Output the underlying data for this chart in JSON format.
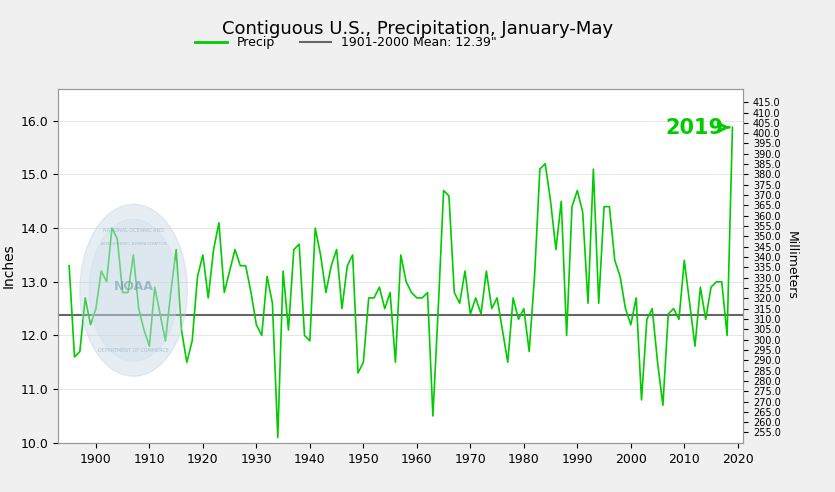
{
  "title": "Contiguous U.S., Precipitation, January-May",
  "ylabel_left": "Inches",
  "ylabel_right": "Millimeters",
  "mean_value": 12.39,
  "mean_label": "1901-2000 Mean: 12.39\"",
  "annotation_2019": "2019",
  "annotation_color": "#00cc00",
  "line_color": "#00cc00",
  "mean_line_color": "#666666",
  "bg_color": "#f0f0f0",
  "plot_bg_color": "#ffffff",
  "xlim": [
    1893,
    2021
  ],
  "ylim_inches": [
    10.0,
    16.6
  ],
  "ylim_mm_lo": 250.0,
  "ylim_mm_hi": 421.6,
  "xticks": [
    1900,
    1910,
    1920,
    1930,
    1940,
    1950,
    1960,
    1970,
    1980,
    1990,
    2000,
    2010,
    2020
  ],
  "yticks_left": [
    10.0,
    11.0,
    12.0,
    13.0,
    14.0,
    15.0,
    16.0
  ],
  "yticks_right": [
    255.0,
    260.0,
    265.0,
    270.0,
    275.0,
    280.0,
    285.0,
    290.0,
    295.0,
    300.0,
    305.0,
    310.0,
    315.0,
    320.0,
    325.0,
    330.0,
    335.0,
    340.0,
    345.0,
    350.0,
    355.0,
    360.0,
    365.0,
    370.0,
    375.0,
    380.0,
    385.0,
    390.0,
    395.0,
    400.0,
    405.0,
    410.0,
    415.0
  ],
  "years": [
    1895,
    1896,
    1897,
    1898,
    1899,
    1900,
    1901,
    1902,
    1903,
    1904,
    1905,
    1906,
    1907,
    1908,
    1909,
    1910,
    1911,
    1912,
    1913,
    1914,
    1915,
    1916,
    1917,
    1918,
    1919,
    1920,
    1921,
    1922,
    1923,
    1924,
    1925,
    1926,
    1927,
    1928,
    1929,
    1930,
    1931,
    1932,
    1933,
    1934,
    1935,
    1936,
    1937,
    1938,
    1939,
    1940,
    1941,
    1942,
    1943,
    1944,
    1945,
    1946,
    1947,
    1948,
    1949,
    1950,
    1951,
    1952,
    1953,
    1954,
    1955,
    1956,
    1957,
    1958,
    1959,
    1960,
    1961,
    1962,
    1963,
    1964,
    1965,
    1966,
    1967,
    1968,
    1969,
    1970,
    1971,
    1972,
    1973,
    1974,
    1975,
    1976,
    1977,
    1978,
    1979,
    1980,
    1981,
    1982,
    1983,
    1984,
    1985,
    1986,
    1987,
    1988,
    1989,
    1990,
    1991,
    1992,
    1993,
    1994,
    1995,
    1996,
    1997,
    1998,
    1999,
    2000,
    2001,
    2002,
    2003,
    2004,
    2005,
    2006,
    2007,
    2008,
    2009,
    2010,
    2011,
    2012,
    2013,
    2014,
    2015,
    2016,
    2017,
    2018,
    2019
  ],
  "precip": [
    13.3,
    11.6,
    11.7,
    12.7,
    12.2,
    12.5,
    13.2,
    13.0,
    14.0,
    13.8,
    12.8,
    12.8,
    13.5,
    12.5,
    12.1,
    11.8,
    12.9,
    12.4,
    11.9,
    12.8,
    13.6,
    12.1,
    11.5,
    11.9,
    13.1,
    13.5,
    12.7,
    13.6,
    14.1,
    12.8,
    13.2,
    13.6,
    13.3,
    13.3,
    12.8,
    12.2,
    12.0,
    13.1,
    12.6,
    10.1,
    13.2,
    12.1,
    13.6,
    13.7,
    12.0,
    11.9,
    14.0,
    13.5,
    12.8,
    13.3,
    13.6,
    12.5,
    13.3,
    13.5,
    11.3,
    11.5,
    12.7,
    12.7,
    12.9,
    12.5,
    12.8,
    11.5,
    13.5,
    13.0,
    12.8,
    12.7,
    12.7,
    12.8,
    10.5,
    12.5,
    14.7,
    14.6,
    12.8,
    12.6,
    13.2,
    12.4,
    12.7,
    12.4,
    13.2,
    12.5,
    12.7,
    12.1,
    11.5,
    12.7,
    12.3,
    12.5,
    11.7,
    13.1,
    15.1,
    15.2,
    14.5,
    13.6,
    14.5,
    12.0,
    14.4,
    14.7,
    14.3,
    12.6,
    15.1,
    12.6,
    14.4,
    14.4,
    13.4,
    13.1,
    12.5,
    12.2,
    12.7,
    10.8,
    12.3,
    12.5,
    11.5,
    10.7,
    12.4,
    12.5,
    12.3,
    13.4,
    12.6,
    11.8,
    12.9,
    12.3,
    12.9,
    13.0,
    13.0,
    12.0,
    15.88
  ]
}
